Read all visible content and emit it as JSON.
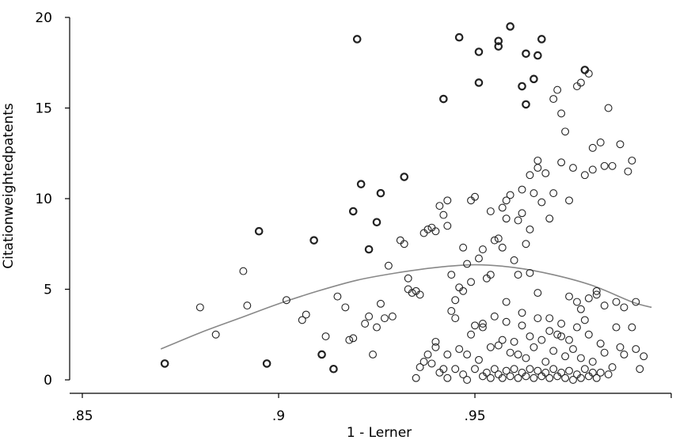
{
  "chart_data": {
    "type": "scatter",
    "xlabel": "1 - Lerner",
    "ylabel": "Citationweightedpatents",
    "xlim": [
      0.85,
      1.0
    ],
    "ylim": [
      0,
      20
    ],
    "x_ticks": [
      ".85",
      ".9",
      ".95"
    ],
    "x_tick_values": [
      0.85,
      0.9,
      0.95
    ],
    "y_ticks": [
      "0",
      "5",
      "10",
      "15",
      "20"
    ],
    "y_tick_values": [
      0,
      5,
      10,
      15,
      20
    ],
    "grid": false,
    "legend": "none",
    "series": [
      {
        "marker": "hollow-circle-bold",
        "points": [
          [
            0.871,
            0.9
          ],
          [
            0.895,
            8.2
          ],
          [
            0.897,
            0.9
          ],
          [
            0.909,
            7.7
          ],
          [
            0.911,
            1.4
          ],
          [
            0.914,
            0.6
          ],
          [
            0.919,
            9.3
          ],
          [
            0.921,
            10.8
          ],
          [
            0.923,
            7.2
          ],
          [
            0.925,
            8.7
          ],
          [
            0.92,
            18.8
          ],
          [
            0.926,
            10.3
          ],
          [
            0.932,
            11.2
          ],
          [
            0.942,
            15.5
          ],
          [
            0.946,
            18.9
          ],
          [
            0.951,
            16.4
          ],
          [
            0.951,
            18.1
          ],
          [
            0.956,
            18.7
          ],
          [
            0.956,
            18.4
          ],
          [
            0.959,
            19.5
          ],
          [
            0.962,
            16.2
          ],
          [
            0.963,
            15.2
          ],
          [
            0.963,
            18.0
          ],
          [
            0.965,
            16.6
          ],
          [
            0.966,
            17.9
          ],
          [
            0.967,
            18.8
          ],
          [
            0.978,
            17.1
          ]
        ]
      },
      {
        "marker": "hollow-circle",
        "points": [
          [
            0.88,
            4.0
          ],
          [
            0.884,
            2.5
          ],
          [
            0.891,
            6.0
          ],
          [
            0.892,
            4.1
          ],
          [
            0.902,
            4.4
          ],
          [
            0.906,
            3.3
          ],
          [
            0.907,
            3.6
          ],
          [
            0.912,
            2.4
          ],
          [
            0.915,
            4.6
          ],
          [
            0.917,
            4.0
          ],
          [
            0.918,
            2.2
          ],
          [
            0.919,
            2.3
          ],
          [
            0.922,
            3.1
          ],
          [
            0.923,
            3.5
          ],
          [
            0.924,
            1.4
          ],
          [
            0.925,
            2.9
          ],
          [
            0.926,
            4.2
          ],
          [
            0.927,
            3.4
          ],
          [
            0.928,
            6.3
          ],
          [
            0.929,
            3.5
          ],
          [
            0.931,
            7.7
          ],
          [
            0.932,
            7.5
          ],
          [
            0.933,
            5.0
          ],
          [
            0.934,
            4.8
          ],
          [
            0.935,
            4.9
          ],
          [
            0.936,
            4.7
          ],
          [
            0.937,
            8.1
          ],
          [
            0.938,
            8.3
          ],
          [
            0.939,
            8.4
          ],
          [
            0.94,
            8.2
          ],
          [
            0.941,
            9.6
          ],
          [
            0.942,
            9.1
          ],
          [
            0.943,
            8.5
          ],
          [
            0.943,
            9.9
          ],
          [
            0.944,
            5.8
          ],
          [
            0.945,
            4.4
          ],
          [
            0.946,
            5.1
          ],
          [
            0.947,
            4.9
          ],
          [
            0.947,
            7.3
          ],
          [
            0.948,
            6.4
          ],
          [
            0.949,
            5.4
          ],
          [
            0.949,
            9.9
          ],
          [
            0.95,
            10.1
          ],
          [
            0.951,
            6.7
          ],
          [
            0.952,
            7.2
          ],
          [
            0.953,
            5.6
          ],
          [
            0.954,
            5.8
          ],
          [
            0.954,
            9.3
          ],
          [
            0.955,
            7.7
          ],
          [
            0.956,
            7.8
          ],
          [
            0.957,
            7.3
          ],
          [
            0.957,
            9.5
          ],
          [
            0.958,
            8.9
          ],
          [
            0.958,
            9.9
          ],
          [
            0.959,
            10.2
          ],
          [
            0.96,
            6.6
          ],
          [
            0.961,
            5.8
          ],
          [
            0.961,
            8.8
          ],
          [
            0.962,
            10.5
          ],
          [
            0.962,
            9.2
          ],
          [
            0.963,
            7.5
          ],
          [
            0.964,
            5.9
          ],
          [
            0.964,
            8.3
          ],
          [
            0.964,
            11.3
          ],
          [
            0.965,
            10.3
          ],
          [
            0.966,
            11.7
          ],
          [
            0.966,
            12.1
          ],
          [
            0.967,
            9.8
          ],
          [
            0.968,
            11.4
          ],
          [
            0.969,
            8.9
          ],
          [
            0.97,
            10.3
          ],
          [
            0.97,
            15.5
          ],
          [
            0.971,
            16.0
          ],
          [
            0.972,
            14.7
          ],
          [
            0.972,
            12.0
          ],
          [
            0.973,
            13.7
          ],
          [
            0.974,
            9.9
          ],
          [
            0.975,
            11.7
          ],
          [
            0.976,
            16.2
          ],
          [
            0.977,
            16.4
          ],
          [
            0.978,
            11.3
          ],
          [
            0.979,
            16.9
          ],
          [
            0.98,
            11.6
          ],
          [
            0.98,
            12.8
          ],
          [
            0.982,
            13.1
          ],
          [
            0.983,
            11.8
          ],
          [
            0.984,
            15.0
          ],
          [
            0.985,
            11.8
          ],
          [
            0.986,
            4.3
          ],
          [
            0.986,
            2.9
          ],
          [
            0.987,
            1.8
          ],
          [
            0.987,
            13.0
          ],
          [
            0.988,
            4.0
          ],
          [
            0.988,
            1.4
          ],
          [
            0.989,
            11.5
          ],
          [
            0.99,
            2.9
          ],
          [
            0.99,
            12.1
          ],
          [
            0.991,
            4.3
          ],
          [
            0.991,
            1.7
          ],
          [
            0.992,
            0.6
          ],
          [
            0.993,
            1.3
          ],
          [
            0.935,
            0.1
          ],
          [
            0.936,
            0.7
          ],
          [
            0.937,
            1.0
          ],
          [
            0.938,
            1.4
          ],
          [
            0.939,
            0.9
          ],
          [
            0.94,
            1.8
          ],
          [
            0.94,
            2.1
          ],
          [
            0.941,
            0.4
          ],
          [
            0.942,
            0.6
          ],
          [
            0.943,
            1.4
          ],
          [
            0.943,
            0.1
          ],
          [
            0.944,
            3.8
          ],
          [
            0.945,
            0.6
          ],
          [
            0.946,
            1.7
          ],
          [
            0.947,
            0.3
          ],
          [
            0.948,
            1.4
          ],
          [
            0.948,
            0.0
          ],
          [
            0.949,
            2.5
          ],
          [
            0.95,
            3.0
          ],
          [
            0.95,
            0.6
          ],
          [
            0.951,
            1.1
          ],
          [
            0.952,
            3.1
          ],
          [
            0.952,
            0.2
          ],
          [
            0.953,
            0.4
          ],
          [
            0.954,
            1.8
          ],
          [
            0.954,
            0.1
          ],
          [
            0.955,
            3.5
          ],
          [
            0.955,
            0.6
          ],
          [
            0.956,
            1.9
          ],
          [
            0.956,
            0.3
          ],
          [
            0.957,
            2.2
          ],
          [
            0.957,
            0.1
          ],
          [
            0.958,
            3.2
          ],
          [
            0.958,
            0.5
          ],
          [
            0.959,
            1.5
          ],
          [
            0.959,
            0.2
          ],
          [
            0.96,
            2.1
          ],
          [
            0.96,
            0.6
          ],
          [
            0.961,
            1.4
          ],
          [
            0.961,
            0.1
          ],
          [
            0.962,
            3.0
          ],
          [
            0.962,
            0.4
          ],
          [
            0.963,
            1.2
          ],
          [
            0.963,
            0.2
          ],
          [
            0.964,
            2.4
          ],
          [
            0.964,
            0.6
          ],
          [
            0.965,
            1.8
          ],
          [
            0.965,
            0.1
          ],
          [
            0.966,
            3.4
          ],
          [
            0.966,
            0.5
          ],
          [
            0.967,
            2.2
          ],
          [
            0.967,
            0.2
          ],
          [
            0.968,
            1.0
          ],
          [
            0.968,
            0.4
          ],
          [
            0.969,
            2.7
          ],
          [
            0.969,
            0.1
          ],
          [
            0.97,
            1.6
          ],
          [
            0.97,
            0.6
          ],
          [
            0.971,
            2.5
          ],
          [
            0.971,
            0.2
          ],
          [
            0.972,
            3.1
          ],
          [
            0.972,
            0.4
          ],
          [
            0.973,
            1.3
          ],
          [
            0.973,
            0.1
          ],
          [
            0.974,
            2.2
          ],
          [
            0.974,
            0.5
          ],
          [
            0.975,
            1.7
          ],
          [
            0.975,
            0.0
          ],
          [
            0.976,
            2.9
          ],
          [
            0.976,
            0.3
          ],
          [
            0.977,
            1.2
          ],
          [
            0.977,
            0.1
          ],
          [
            0.978,
            3.3
          ],
          [
            0.978,
            0.6
          ],
          [
            0.979,
            2.5
          ],
          [
            0.979,
            0.2
          ],
          [
            0.98,
            1.0
          ],
          [
            0.98,
            0.4
          ],
          [
            0.981,
            4.7
          ],
          [
            0.981,
            0.1
          ],
          [
            0.982,
            2.0
          ],
          [
            0.982,
            0.4
          ],
          [
            0.983,
            1.5
          ],
          [
            0.984,
            0.3
          ],
          [
            0.985,
            0.7
          ],
          [
            0.933,
            5.6
          ],
          [
            0.945,
            3.4
          ],
          [
            0.952,
            2.9
          ],
          [
            0.958,
            4.3
          ],
          [
            0.962,
            3.7
          ],
          [
            0.966,
            4.8
          ],
          [
            0.969,
            3.4
          ],
          [
            0.972,
            2.4
          ],
          [
            0.974,
            4.6
          ],
          [
            0.976,
            4.3
          ],
          [
            0.977,
            3.9
          ],
          [
            0.979,
            4.5
          ],
          [
            0.981,
            4.9
          ],
          [
            0.983,
            4.1
          ]
        ]
      }
    ],
    "fit_curve": {
      "style": "smooth-line",
      "points": [
        [
          0.87,
          1.7
        ],
        [
          0.88,
          2.6
        ],
        [
          0.89,
          3.4
        ],
        [
          0.9,
          4.2
        ],
        [
          0.91,
          4.9
        ],
        [
          0.92,
          5.5
        ],
        [
          0.93,
          5.9
        ],
        [
          0.94,
          6.2
        ],
        [
          0.95,
          6.35
        ],
        [
          0.96,
          6.2
        ],
        [
          0.97,
          5.8
        ],
        [
          0.98,
          5.2
        ],
        [
          0.99,
          4.3
        ],
        [
          0.995,
          4.0
        ]
      ]
    },
    "colors": {
      "markers": "#222222",
      "fit_line": "#888888",
      "axes": "#000000"
    }
  }
}
